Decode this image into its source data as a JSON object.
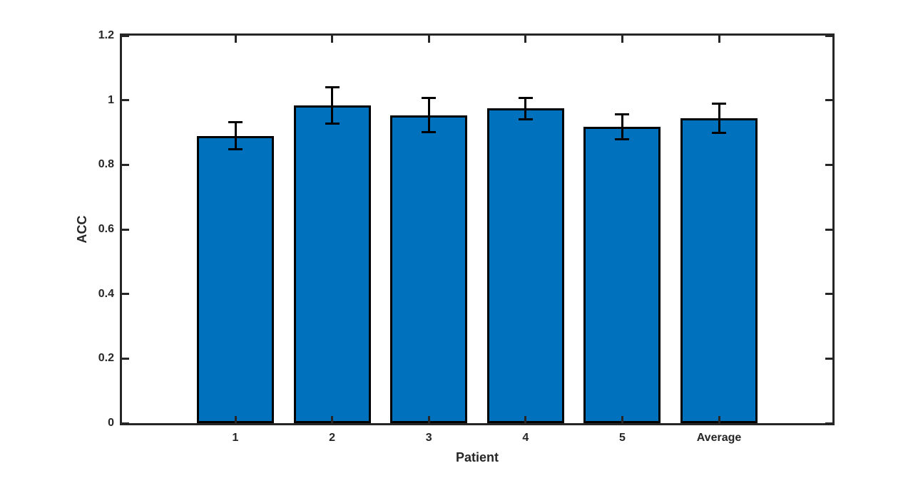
{
  "chart_data": {
    "type": "bar",
    "categories": [
      "1",
      "2",
      "3",
      "4",
      "5",
      "Average"
    ],
    "values": [
      0.89,
      0.984,
      0.954,
      0.974,
      0.917,
      0.944
    ],
    "errors": [
      0.042,
      0.057,
      0.052,
      0.033,
      0.039,
      0.045
    ],
    "title": "",
    "xlabel": "Patient",
    "ylabel": "ACC",
    "ylim": [
      0,
      1.2
    ],
    "yticks": [
      0,
      0.2,
      0.4,
      0.6,
      0.8,
      1,
      1.2
    ],
    "ytick_labels": [
      "0",
      "0.2",
      "0.4",
      "0.6",
      "0.8",
      "1",
      "1.2"
    ],
    "grid": false,
    "legend": null,
    "box": true,
    "tick_direction": "in",
    "bar_color": "#0072BD",
    "bar_edge_color": "#000000",
    "error_bar_color": "#000000",
    "axis_color": "#262626"
  }
}
